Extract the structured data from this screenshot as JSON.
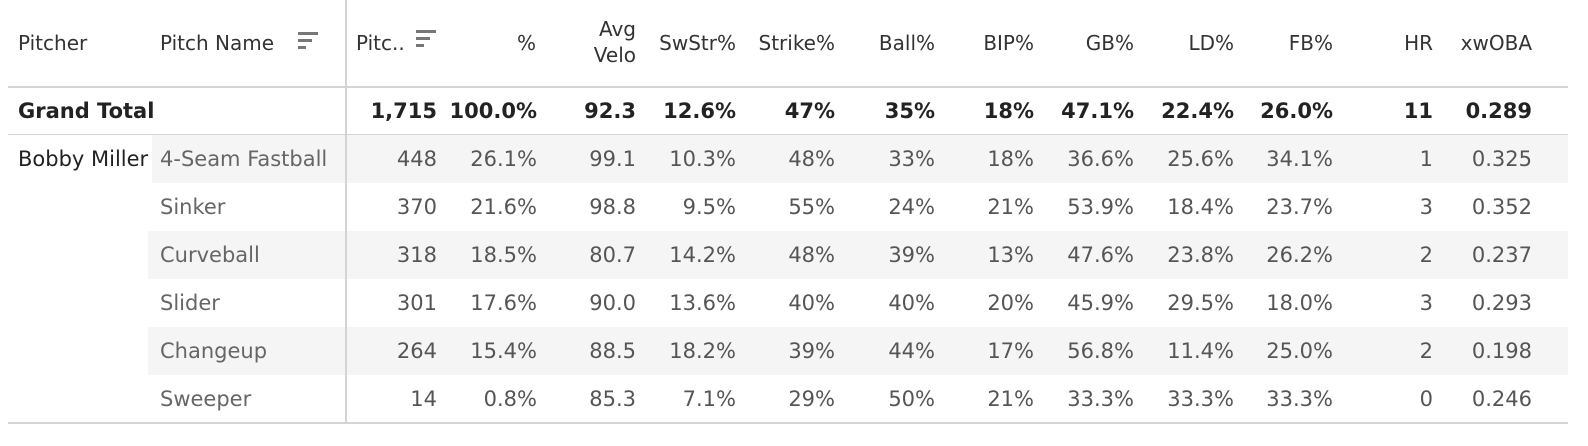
{
  "headers": {
    "pitcher": "Pitcher",
    "pitch_name": "Pitch Name",
    "pitches": "Pitc..",
    "pct": "%",
    "avg_velo_line1": "Avg",
    "avg_velo_line2": "Velo",
    "swstr": "SwStr%",
    "strike": "Strike%",
    "ball": "Ball%",
    "bip": "BIP%",
    "gb": "GB%",
    "ld": "LD%",
    "fb": "FB%",
    "hr": "HR",
    "xwoba": "xwOBA"
  },
  "grand_total": {
    "label": "Grand Total",
    "values": [
      "1,715",
      "100.0%",
      "92.3",
      "12.6%",
      "47%",
      "35%",
      "18%",
      "47.1%",
      "22.4%",
      "26.0%",
      "11",
      "0.289"
    ]
  },
  "pitcher": "Bobby Miller",
  "rows": [
    {
      "pitch": "4-Seam Fastball",
      "values": [
        "448",
        "26.1%",
        "99.1",
        "10.3%",
        "48%",
        "33%",
        "18%",
        "36.6%",
        "25.6%",
        "34.1%",
        "1",
        "0.325"
      ]
    },
    {
      "pitch": "Sinker",
      "values": [
        "370",
        "21.6%",
        "98.8",
        "9.5%",
        "55%",
        "24%",
        "21%",
        "53.9%",
        "18.4%",
        "23.7%",
        "3",
        "0.352"
      ]
    },
    {
      "pitch": "Curveball",
      "values": [
        "318",
        "18.5%",
        "80.7",
        "14.2%",
        "48%",
        "39%",
        "13%",
        "47.6%",
        "23.8%",
        "26.2%",
        "2",
        "0.237"
      ]
    },
    {
      "pitch": "Slider",
      "values": [
        "301",
        "17.6%",
        "90.0",
        "13.6%",
        "40%",
        "40%",
        "20%",
        "45.9%",
        "29.5%",
        "18.0%",
        "3",
        "0.293"
      ]
    },
    {
      "pitch": "Changeup",
      "values": [
        "264",
        "15.4%",
        "88.5",
        "18.2%",
        "39%",
        "44%",
        "17%",
        "56.8%",
        "11.4%",
        "25.0%",
        "2",
        "0.198"
      ]
    },
    {
      "pitch": "Sweeper",
      "values": [
        "14",
        "0.8%",
        "85.3",
        "7.1%",
        "29%",
        "50%",
        "21%",
        "33.3%",
        "33.3%",
        "33.3%",
        "0",
        "0.246"
      ]
    }
  ],
  "colors": {
    "row_shade": "#f5f5f5",
    "grid_line": "#d4d4d4",
    "text": "#333333"
  },
  "icons": {
    "sort": "sort-descending-icon"
  }
}
